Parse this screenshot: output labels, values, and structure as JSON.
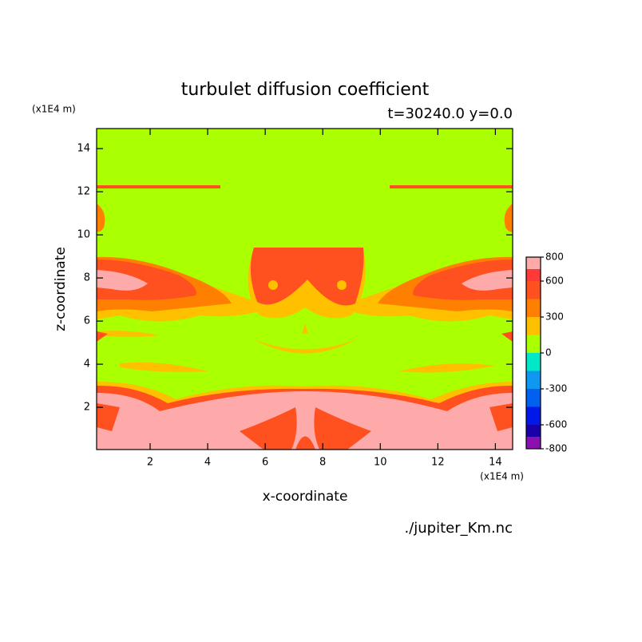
{
  "chart_data": {
    "type": "contour",
    "title": "turbulet diffusion coefficient",
    "subtitle": "t=30240.0 y=0.0",
    "x_label": "x-coordinate",
    "y_label": "z-coordinate",
    "x_unit": "(x1E4 m)",
    "y_unit": "(x1E4 m)",
    "source": "./jupiter_Km.nc",
    "xlim": [
      0.14,
      14.6
    ],
    "ylim": [
      0.04,
      14.93
    ],
    "xticks": [
      2,
      4,
      6,
      8,
      10,
      12,
      14
    ],
    "yticks": [
      2,
      4,
      6,
      8,
      10,
      12,
      14
    ],
    "levels": [
      -800,
      -700,
      -600,
      -450,
      -300,
      -150,
      0,
      150,
      300,
      450,
      600,
      700,
      800
    ],
    "colors": [
      "#8a10b0",
      "#1a00a8",
      "#0018e8",
      "#0060f0",
      "#1098f0",
      "#00e8c8",
      "#aaff00",
      "#ffc000",
      "#ff8000",
      "#ff5020",
      "#ff3838",
      "#ffaaaa"
    ],
    "colorbar_ticks": [
      800,
      600,
      300,
      0,
      -300,
      -600,
      -800
    ]
  }
}
